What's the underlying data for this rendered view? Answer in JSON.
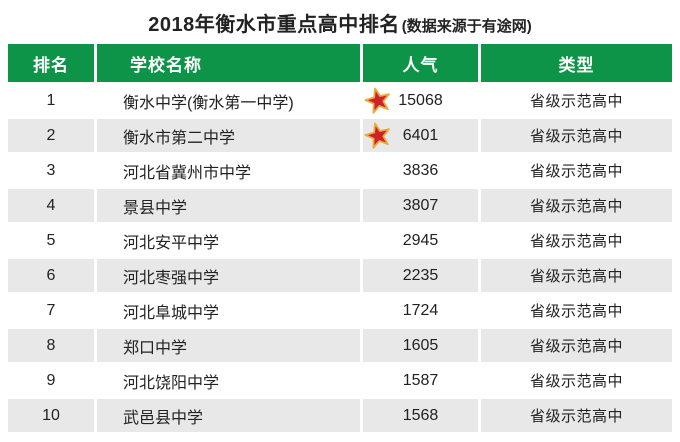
{
  "colors": {
    "header_green": "#0d9448",
    "row_alt_gray": "#e8e8e8",
    "row_white": "#ffffff",
    "text": "#222222",
    "star_fill": "#cc2229",
    "star_outline": "#eda93c"
  },
  "title": {
    "main": "2018年衡水市重点高中排名",
    "note": "(数据来源于有途网)"
  },
  "table": {
    "headers": {
      "rank": "排名",
      "school": "学校名称",
      "popularity": "人气",
      "type": "类型"
    },
    "rows": [
      {
        "rank": "1",
        "school": "衡水中学(衡水第一中学)",
        "popularity": "15068",
        "starred": true,
        "type": "省级示范高中"
      },
      {
        "rank": "2",
        "school": "衡水市第二中学",
        "popularity": "6401",
        "starred": true,
        "type": "省级示范高中"
      },
      {
        "rank": "3",
        "school": "河北省冀州市中学",
        "popularity": "3836",
        "starred": false,
        "type": "省级示范高中"
      },
      {
        "rank": "4",
        "school": "景县中学",
        "popularity": "3807",
        "starred": false,
        "type": "省级示范高中"
      },
      {
        "rank": "5",
        "school": "河北安平中学",
        "popularity": "2945",
        "starred": false,
        "type": "省级示范高中"
      },
      {
        "rank": "6",
        "school": "河北枣强中学",
        "popularity": "2235",
        "starred": false,
        "type": "省级示范高中"
      },
      {
        "rank": "7",
        "school": "河北阜城中学",
        "popularity": "1724",
        "starred": false,
        "type": "省级示范高中"
      },
      {
        "rank": "8",
        "school": "郑口中学",
        "popularity": "1605",
        "starred": false,
        "type": "省级示范高中"
      },
      {
        "rank": "9",
        "school": "河北饶阳中学",
        "popularity": "1587",
        "starred": false,
        "type": "省级示范高中"
      },
      {
        "rank": "10",
        "school": "武邑县中学",
        "popularity": "1568",
        "starred": false,
        "type": "省级示范高中"
      }
    ]
  },
  "chart_data": {
    "type": "table",
    "title": "2018年衡水市重点高中排名(数据来源于有途网)",
    "columns": [
      "排名",
      "学校名称",
      "人气",
      "类型"
    ],
    "rows": [
      [
        "1",
        "衡水中学(衡水第一中学)",
        "15068",
        "省级示范高中"
      ],
      [
        "2",
        "衡水市第二中学",
        "6401",
        "省级示范高中"
      ],
      [
        "3",
        "河北省冀州市中学",
        "3836",
        "省级示范高中"
      ],
      [
        "4",
        "景县中学",
        "3807",
        "省级示范高中"
      ],
      [
        "5",
        "河北安平中学",
        "2945",
        "省级示范高中"
      ],
      [
        "6",
        "河北枣强中学",
        "2235",
        "省级示范高中"
      ],
      [
        "7",
        "河北阜城中学",
        "1724",
        "省级示范高中"
      ],
      [
        "8",
        "郑口中学",
        "1605",
        "省级示范高中"
      ],
      [
        "9",
        "河北饶阳中学",
        "1587",
        "省级示范高中"
      ],
      [
        "10",
        "武邑县中学",
        "1568",
        "省级示范高中"
      ]
    ],
    "popularity_values": [
      15068,
      6401,
      3836,
      3807,
      2945,
      2235,
      1724,
      1605,
      1587,
      1568
    ],
    "starred_ranks": [
      1,
      2
    ],
    "notes": "static ranking table, alternating row shading, green header"
  }
}
